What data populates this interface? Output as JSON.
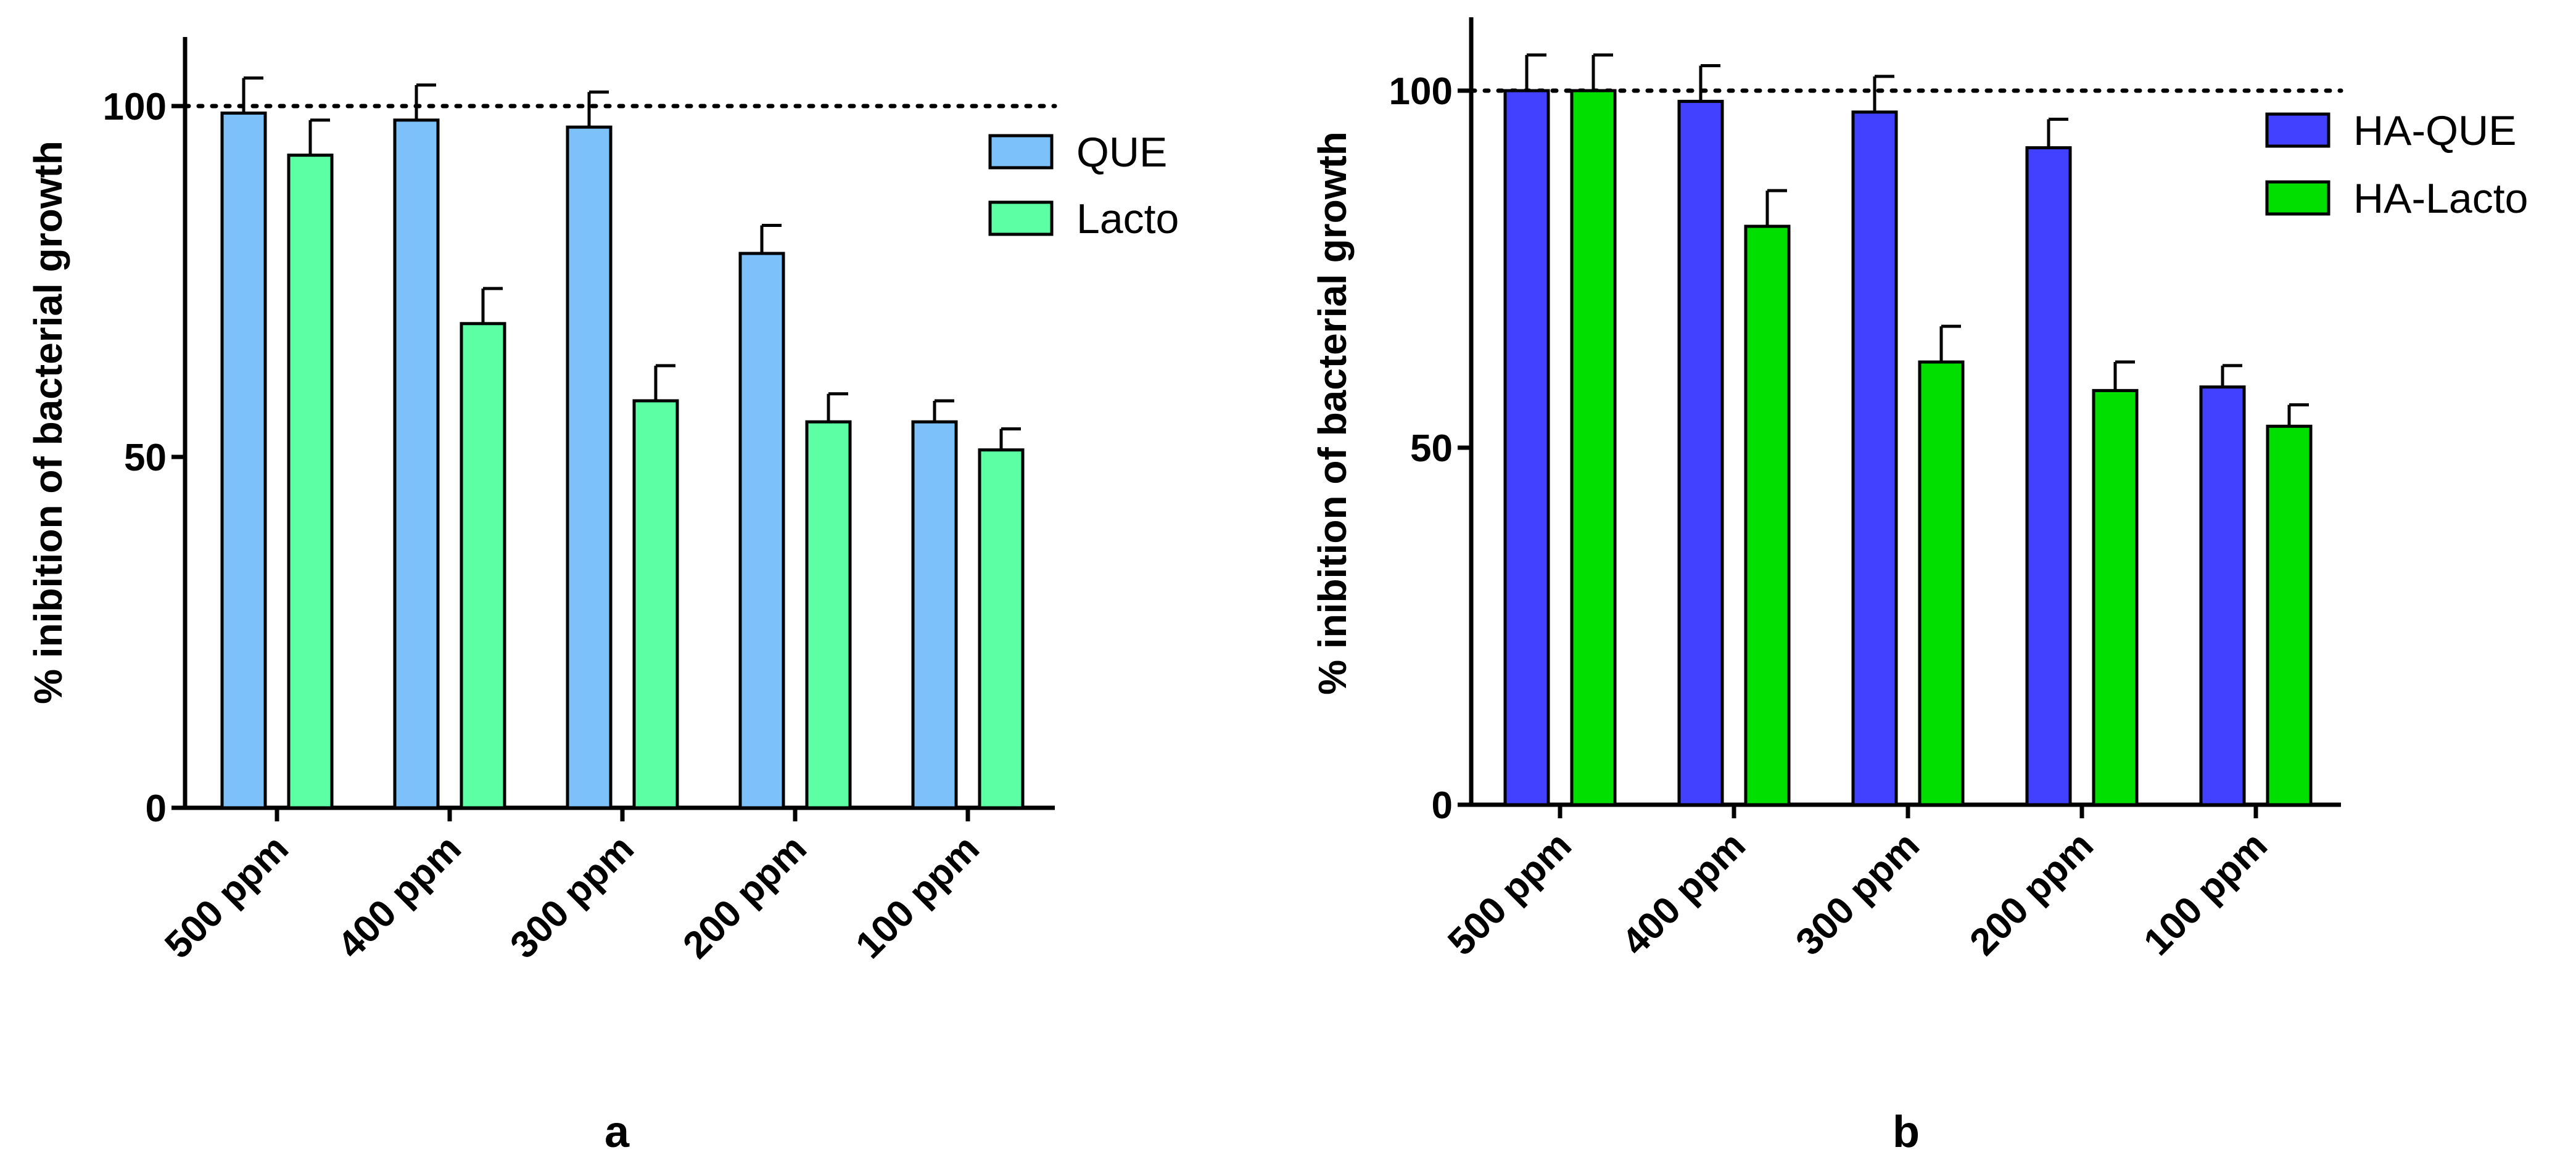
{
  "chart_data": [
    {
      "type": "bar",
      "panel_label": "a",
      "ylabel": "% inibition of bacterial growth",
      "xlabel": "",
      "categories": [
        "500 ppm",
        "400 ppm",
        "300 ppm",
        "200 ppm",
        "100 ppm"
      ],
      "ylim": [
        0,
        110
      ],
      "yticks": [
        0,
        50,
        100
      ],
      "ytick_labels": [
        "0",
        "50",
        "100"
      ],
      "reference_line": 100,
      "legend_position": "top-right",
      "series": [
        {
          "name": "QUE",
          "color": "#7DC1FA",
          "values": [
            99,
            98,
            97,
            79,
            55
          ],
          "errors": [
            5,
            5,
            5,
            4,
            3
          ]
        },
        {
          "name": "Lacto",
          "color": "#5CFFA4",
          "values": [
            93,
            69,
            58,
            55,
            51
          ],
          "errors": [
            5,
            5,
            5,
            4,
            3
          ]
        }
      ]
    },
    {
      "type": "bar",
      "panel_label": "b",
      "ylabel": "% inibition of bacterial growth",
      "xlabel": "",
      "categories": [
        "500 ppm",
        "400 ppm",
        "300 ppm",
        "200 ppm",
        "100 ppm"
      ],
      "ylim": [
        0,
        110
      ],
      "yticks": [
        0,
        50,
        100
      ],
      "ytick_labels": [
        "0",
        "50",
        "100"
      ],
      "reference_line": 100,
      "legend_position": "top-right",
      "series": [
        {
          "name": "HA-QUE",
          "color": "#4141FF",
          "values": [
            100,
            98.5,
            97,
            92,
            58.5
          ],
          "errors": [
            5,
            5,
            5,
            4,
            3
          ]
        },
        {
          "name": "HA-Lacto",
          "color": "#00DF00",
          "values": [
            100,
            81,
            62,
            58,
            53
          ],
          "errors": [
            5,
            5,
            5,
            4,
            3
          ]
        }
      ]
    }
  ]
}
